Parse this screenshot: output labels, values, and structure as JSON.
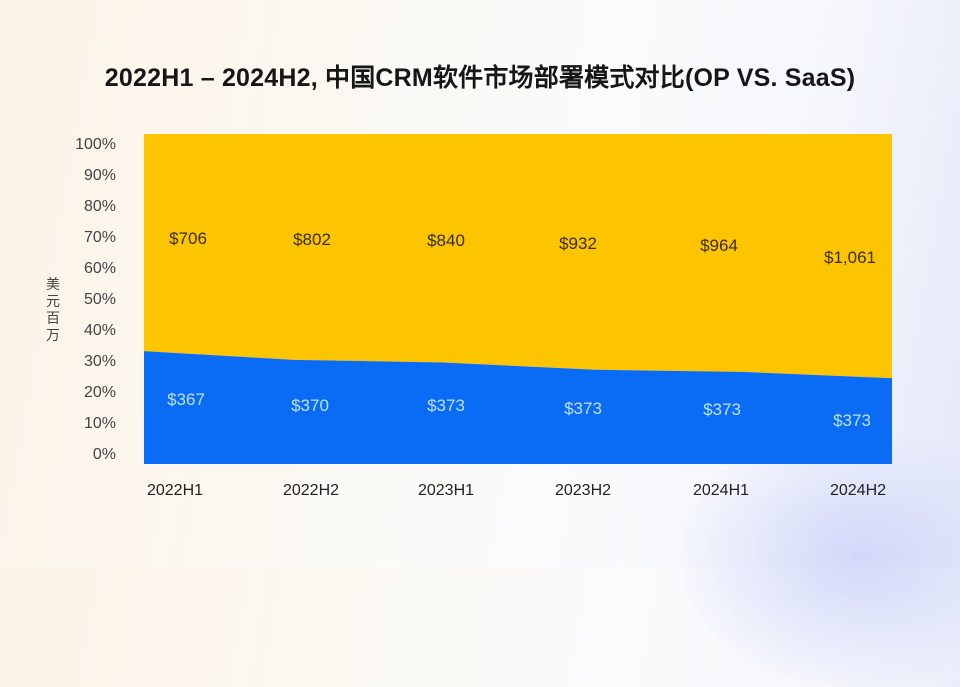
{
  "title": "2022H1 – 2024H2, 中国CRM软件市场部署模式对比(OP VS. SaaS)",
  "y_axis": {
    "unit_label": "美元百万",
    "unit_chars": [
      "美",
      "元",
      "百",
      "万"
    ],
    "ticks": [
      "100%",
      "90%",
      "80%",
      "70%",
      "60%",
      "50%",
      "40%",
      "30%",
      "20%",
      "10%",
      "0%"
    ]
  },
  "x_axis": {
    "ticks": [
      "2022H1",
      "2022H2",
      "2023H1",
      "2023H2",
      "2024H1",
      "2024H2"
    ]
  },
  "labels": {
    "saas": [
      "$706",
      "$802",
      "$840",
      "$932",
      "$964",
      "$1,061"
    ],
    "op": [
      "$367",
      "$370",
      "$373",
      "$373",
      "$373",
      "$373"
    ]
  },
  "colors": {
    "op": "#0a6cf5",
    "saas": "#fdc500"
  },
  "chart_data": {
    "type": "area",
    "stacked": "percent",
    "title": "2022H1 – 2024H2, 中国CRM软件市场部署模式对比(OP VS. SaaS)",
    "xlabel": "",
    "ylabel": "美元百万",
    "ylim": [
      0,
      100
    ],
    "y_ticks": [
      "0%",
      "10%",
      "20%",
      "30%",
      "40%",
      "50%",
      "60%",
      "70%",
      "80%",
      "90%",
      "100%"
    ],
    "categories": [
      "2022H1",
      "2022H2",
      "2023H1",
      "2023H2",
      "2024H1",
      "2024H2"
    ],
    "series": [
      {
        "name": "OP",
        "color": "#0a6cf5",
        "values": [
          367,
          370,
          373,
          373,
          373,
          373
        ],
        "data_labels": [
          "$367",
          "$370",
          "$373",
          "$373",
          "$373",
          "$373"
        ]
      },
      {
        "name": "SaaS",
        "color": "#fdc500",
        "values": [
          706,
          802,
          840,
          932,
          964,
          1061
        ],
        "data_labels": [
          "$706",
          "$802",
          "$840",
          "$932",
          "$964",
          "$1,061"
        ]
      }
    ],
    "grid": false,
    "legend": "none"
  }
}
